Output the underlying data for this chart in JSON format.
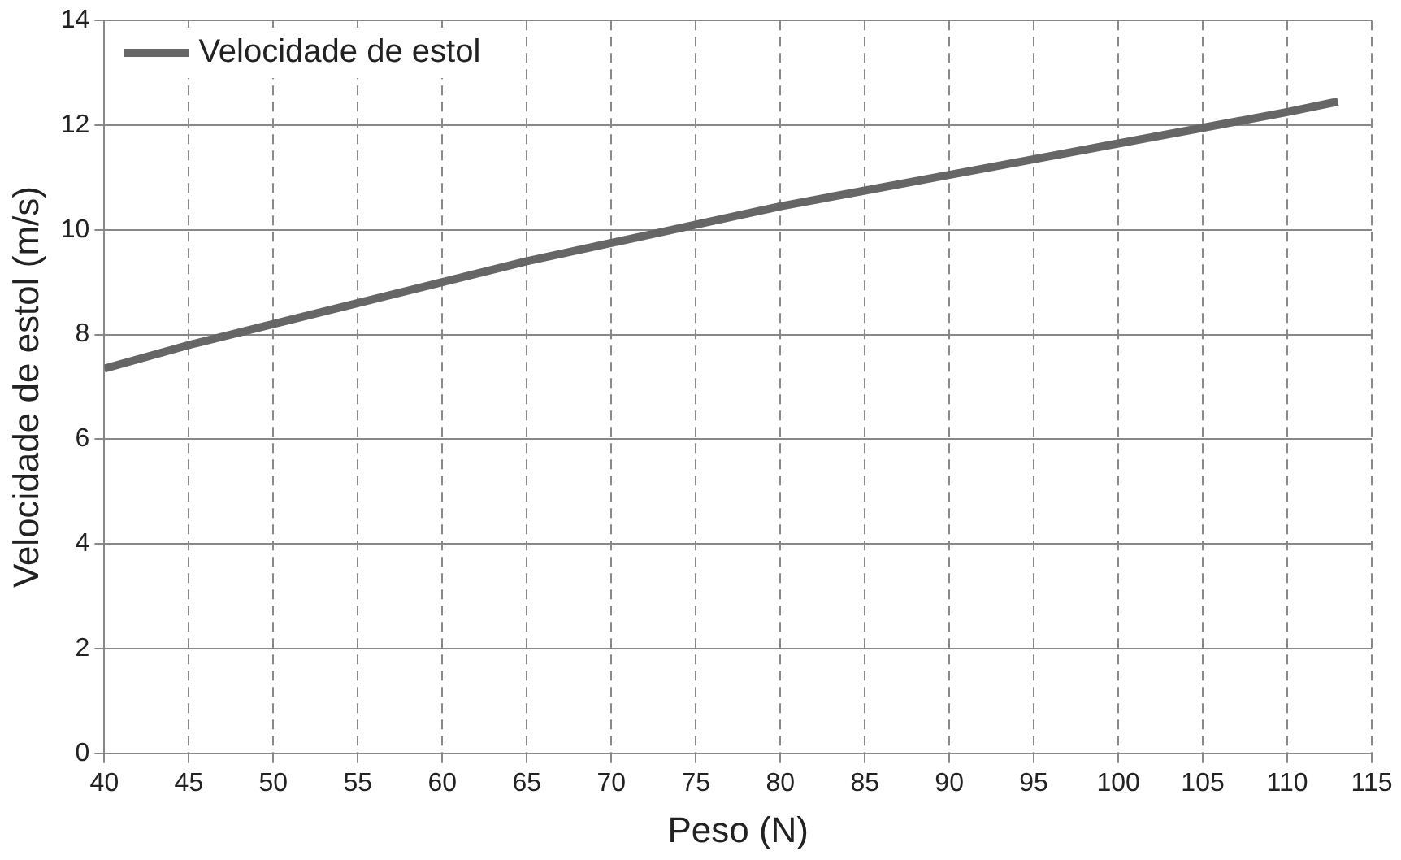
{
  "chart_data": {
    "type": "line",
    "xlabel": "Peso (N)",
    "ylabel": "Velocidade de estol (m/s)",
    "x": [
      40,
      45,
      50,
      55,
      60,
      65,
      70,
      75,
      80,
      85,
      90,
      95,
      100,
      105,
      110,
      113
    ],
    "series": [
      {
        "name": "Velocidade de estol",
        "color": "#666666",
        "values": [
          7.35,
          7.8,
          8.2,
          8.6,
          9.0,
          9.4,
          9.75,
          10.1,
          10.45,
          10.75,
          11.05,
          11.35,
          11.65,
          11.95,
          12.25,
          12.45
        ]
      }
    ],
    "xlim": [
      40,
      115
    ],
    "xticks": [
      40,
      45,
      50,
      55,
      60,
      65,
      70,
      75,
      80,
      85,
      90,
      95,
      100,
      105,
      110,
      115
    ],
    "ylim": [
      0,
      14
    ],
    "yticks": [
      0,
      2,
      4,
      6,
      8,
      10,
      12,
      14
    ],
    "grid": true,
    "legend": "top left",
    "marker": "none",
    "line_style": "solid"
  }
}
